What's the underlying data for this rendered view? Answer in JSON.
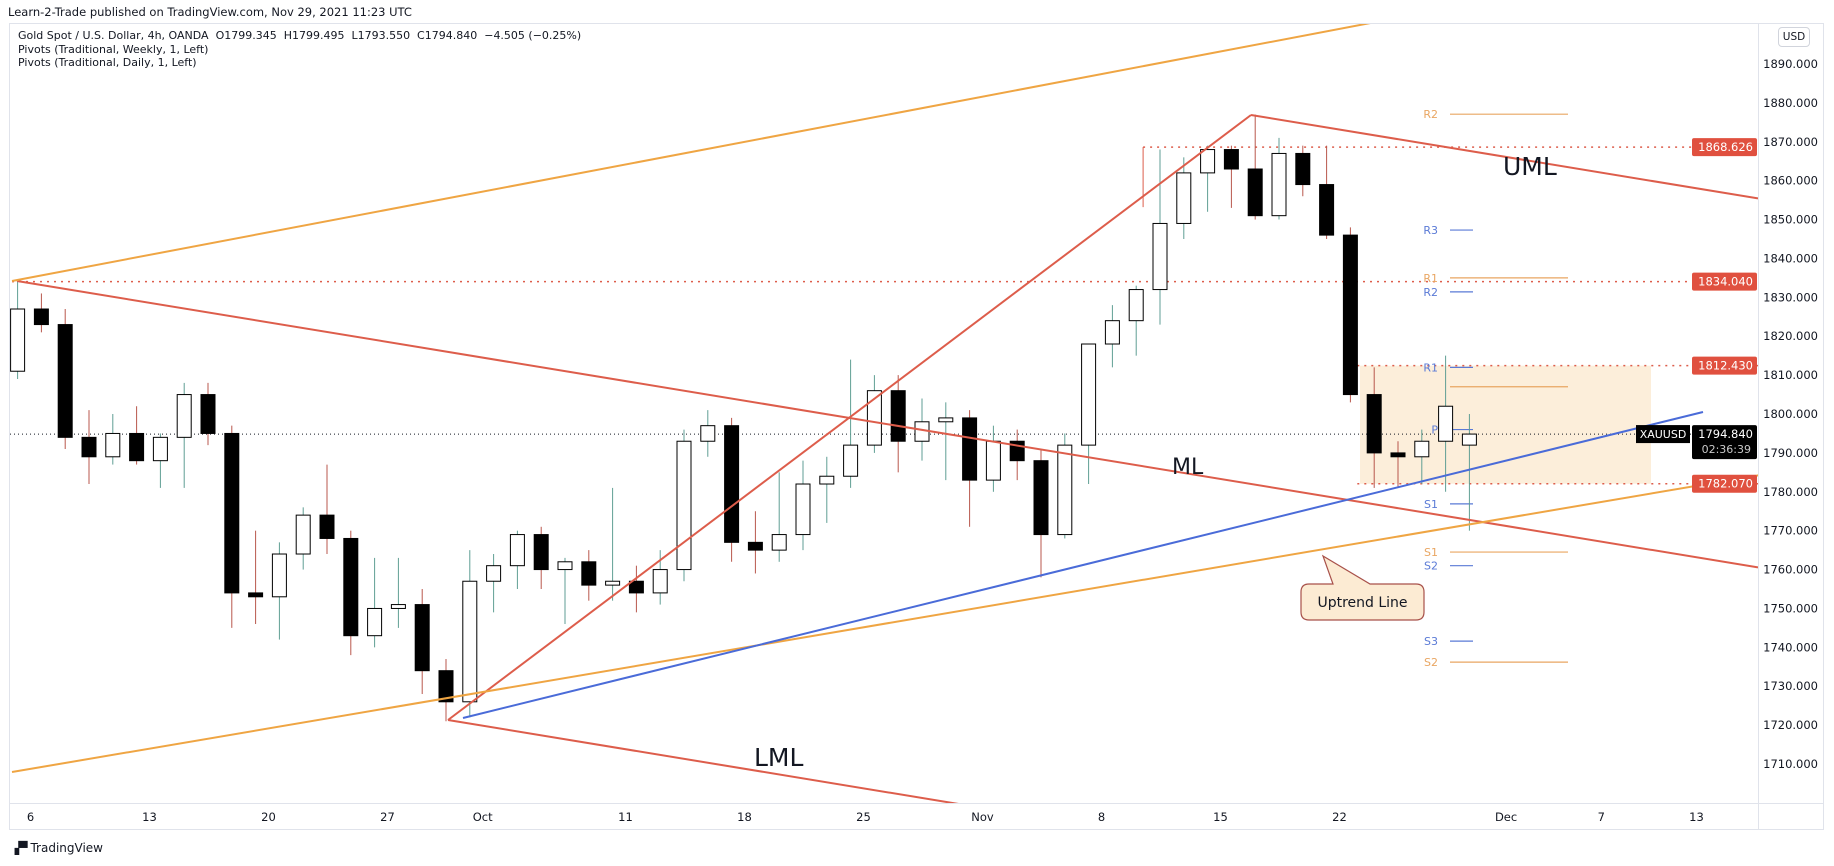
{
  "header": {
    "published": "Learn-2-Trade published on TradingView.com, Nov 29, 2021 11:23 UTC",
    "legend": [
      "Gold Spot / U.S. Dollar, 4h, OANDA  O1799.345  H1799.495  L1793.550  C1794.840  −4.505 (−0.25%)",
      "Pivots (Traditional, Weekly, 1, Left)",
      "Pivots (Traditional, Daily, 1, Left)"
    ]
  },
  "currency_button": "USD",
  "footer": {
    "logo_text": "TradingView",
    "logo_glyph": "TV"
  },
  "colors": {
    "pitchfork": "#dd5d4b",
    "channel": "#efa543",
    "uptrend_blue": "#4a6bd8",
    "level_line": "#dd5d4b",
    "zone_fill": "#fcebd3",
    "bull_wick": "#5f9e94",
    "bear_wick": "#b8574c"
  },
  "chart_data": {
    "type": "candlestick",
    "symbol": "XAUUSD",
    "timeframe_label": "4h",
    "ylim": [
      1700,
      1898
    ],
    "y_ticks": [
      1710,
      1720,
      1730,
      1740,
      1750,
      1760,
      1770,
      1780,
      1790,
      1800,
      1810,
      1820,
      1830,
      1840,
      1850,
      1860,
      1870,
      1880,
      1890
    ],
    "x_ticks": [
      {
        "date": "2021-09-06",
        "label": "6"
      },
      {
        "date": "2021-09-13",
        "label": "13"
      },
      {
        "date": "2021-09-20",
        "label": "20"
      },
      {
        "date": "2021-09-27",
        "label": "27"
      },
      {
        "date": "2021-10-01",
        "label": "Oct"
      },
      {
        "date": "2021-10-11",
        "label": "11"
      },
      {
        "date": "2021-10-18",
        "label": "18"
      },
      {
        "date": "2021-10-25",
        "label": "25"
      },
      {
        "date": "2021-11-01",
        "label": "Nov"
      },
      {
        "date": "2021-11-08",
        "label": "8"
      },
      {
        "date": "2021-11-15",
        "label": "15"
      },
      {
        "date": "2021-11-22",
        "label": "22"
      },
      {
        "date": "2021-12-01",
        "label": "Dec"
      },
      {
        "date": "2021-12-07",
        "label": "7"
      },
      {
        "date": "2021-12-13",
        "label": "13"
      }
    ],
    "ohlc_daily_approx": [
      [
        "2021-09-03",
        1811,
        1834,
        1809,
        1827
      ],
      [
        "2021-09-06",
        1827,
        1831,
        1821,
        1823
      ],
      [
        "2021-09-07",
        1823,
        1827,
        1791,
        1794
      ],
      [
        "2021-09-08",
        1794,
        1801,
        1782,
        1789
      ],
      [
        "2021-09-09",
        1789,
        1800,
        1787,
        1795
      ],
      [
        "2021-09-10",
        1795,
        1802,
        1787,
        1788
      ],
      [
        "2021-09-13",
        1788,
        1795,
        1781,
        1794
      ],
      [
        "2021-09-14",
        1794,
        1808,
        1781,
        1805
      ],
      [
        "2021-09-15",
        1805,
        1808,
        1792,
        1795
      ],
      [
        "2021-09-16",
        1795,
        1797,
        1745,
        1754
      ],
      [
        "2021-09-17",
        1754,
        1770,
        1746,
        1753
      ],
      [
        "2021-09-20",
        1753,
        1767,
        1742,
        1764
      ],
      [
        "2021-09-21",
        1764,
        1776,
        1760,
        1774
      ],
      [
        "2021-09-22",
        1774,
        1787,
        1764,
        1768
      ],
      [
        "2021-09-23",
        1768,
        1770,
        1738,
        1743
      ],
      [
        "2021-09-24",
        1743,
        1763,
        1740,
        1750
      ],
      [
        "2021-09-27",
        1750,
        1763,
        1745,
        1751
      ],
      [
        "2021-09-28",
        1751,
        1755,
        1728,
        1734
      ],
      [
        "2021-09-29",
        1734,
        1737,
        1721,
        1726
      ],
      [
        "2021-09-30",
        1726,
        1765,
        1722,
        1757
      ],
      [
        "2021-10-01",
        1757,
        1764,
        1749,
        1761
      ],
      [
        "2021-10-04",
        1761,
        1770,
        1755,
        1769
      ],
      [
        "2021-10-05",
        1769,
        1771,
        1755,
        1760
      ],
      [
        "2021-10-06",
        1760,
        1763,
        1746,
        1762
      ],
      [
        "2021-10-07",
        1762,
        1765,
        1752,
        1756
      ],
      [
        "2021-10-08",
        1756,
        1781,
        1752,
        1757
      ],
      [
        "2021-10-11",
        1757,
        1761,
        1749,
        1754
      ],
      [
        "2021-10-12",
        1754,
        1765,
        1751,
        1760
      ],
      [
        "2021-10-13",
        1760,
        1796,
        1757,
        1793
      ],
      [
        "2021-10-14",
        1793,
        1801,
        1789,
        1797
      ],
      [
        "2021-10-15",
        1797,
        1799,
        1762,
        1767
      ],
      [
        "2021-10-18",
        1767,
        1775,
        1759,
        1765
      ],
      [
        "2021-10-19",
        1765,
        1785,
        1762,
        1769
      ],
      [
        "2021-10-20",
        1769,
        1788,
        1765,
        1782
      ],
      [
        "2021-10-21",
        1782,
        1789,
        1772,
        1784
      ],
      [
        "2021-10-22",
        1784,
        1814,
        1781,
        1792
      ],
      [
        "2021-10-25",
        1792,
        1810,
        1790,
        1806
      ],
      [
        "2021-10-26",
        1806,
        1810,
        1785,
        1793
      ],
      [
        "2021-10-27",
        1793,
        1804,
        1788,
        1798
      ],
      [
        "2021-10-28",
        1798,
        1803,
        1783,
        1799
      ],
      [
        "2021-10-29",
        1799,
        1801,
        1771,
        1783
      ],
      [
        "2021-11-01",
        1783,
        1797,
        1780,
        1793
      ],
      [
        "2021-11-02",
        1793,
        1796,
        1783,
        1788
      ],
      [
        "2021-11-03",
        1788,
        1791,
        1758,
        1769
      ],
      [
        "2021-11-04",
        1769,
        1795,
        1768,
        1792
      ],
      [
        "2021-11-05",
        1792,
        1818,
        1782,
        1818
      ],
      [
        "2021-11-08",
        1818,
        1828,
        1812,
        1824
      ],
      [
        "2021-11-09",
        1824,
        1833,
        1815,
        1832
      ],
      [
        "2021-11-10",
        1832,
        1868,
        1823,
        1849
      ],
      [
        "2021-11-11",
        1849,
        1866,
        1845,
        1862
      ],
      [
        "2021-11-12",
        1862,
        1869,
        1852,
        1868
      ],
      [
        "2021-11-15",
        1868,
        1869,
        1853,
        1863
      ],
      [
        "2021-11-16",
        1863,
        1877,
        1850,
        1851
      ],
      [
        "2021-11-17",
        1851,
        1871,
        1850,
        1867
      ],
      [
        "2021-11-18",
        1867,
        1869,
        1856,
        1859
      ],
      [
        "2021-11-19",
        1859,
        1869,
        1845,
        1846
      ],
      [
        "2021-11-22",
        1846,
        1848,
        1803,
        1805
      ],
      [
        "2021-11-23",
        1805,
        1812,
        1781,
        1790
      ],
      [
        "2021-11-24",
        1790,
        1793,
        1781,
        1789
      ],
      [
        "2021-11-25",
        1789,
        1796,
        1782,
        1793
      ],
      [
        "2021-11-26",
        1793,
        1815,
        1780,
        1802
      ],
      [
        "2021-11-29",
        1792,
        1800,
        1770,
        1794.84
      ]
    ],
    "last_price": {
      "symbol": "XAUUSD",
      "value": "1794.840",
      "countdown": "02:36:39",
      "price": 1794.84
    },
    "horizontal_levels": [
      {
        "price": 1868.626,
        "label": "1868.626",
        "from": "2021-11-10"
      },
      {
        "price": 1834.04,
        "label": "1834.040",
        "from": "2021-09-03"
      },
      {
        "price": 1812.43,
        "label": "1812.430",
        "from": "2021-11-23"
      },
      {
        "price": 1782.07,
        "label": "1782.070",
        "from": "2021-11-23"
      }
    ],
    "pivots_weekly": [
      {
        "label": "R2",
        "price": 1877.1
      },
      {
        "label": "R1",
        "price": 1835.0
      },
      {
        "label": "",
        "price": 1807.0
      },
      {
        "label": "S1",
        "price": 1764.5
      },
      {
        "label": "S2",
        "price": 1736.2
      }
    ],
    "pivots_daily": [
      {
        "label": "R3",
        "price": 1847.3
      },
      {
        "label": "R2",
        "price": 1831.4
      },
      {
        "label": "R1",
        "price": 1812.0
      },
      {
        "label": "P",
        "price": 1796.0
      },
      {
        "label": "S1",
        "price": 1776.9
      },
      {
        "label": "S2",
        "price": 1761.0
      },
      {
        "label": "S3",
        "price": 1741.6
      }
    ],
    "zone": {
      "top": 1812.43,
      "bottom": 1782.07
    },
    "annotations": {
      "uml": "UML",
      "ml": "ML",
      "lml": "LML",
      "uptrend": "Uptrend Line"
    }
  }
}
